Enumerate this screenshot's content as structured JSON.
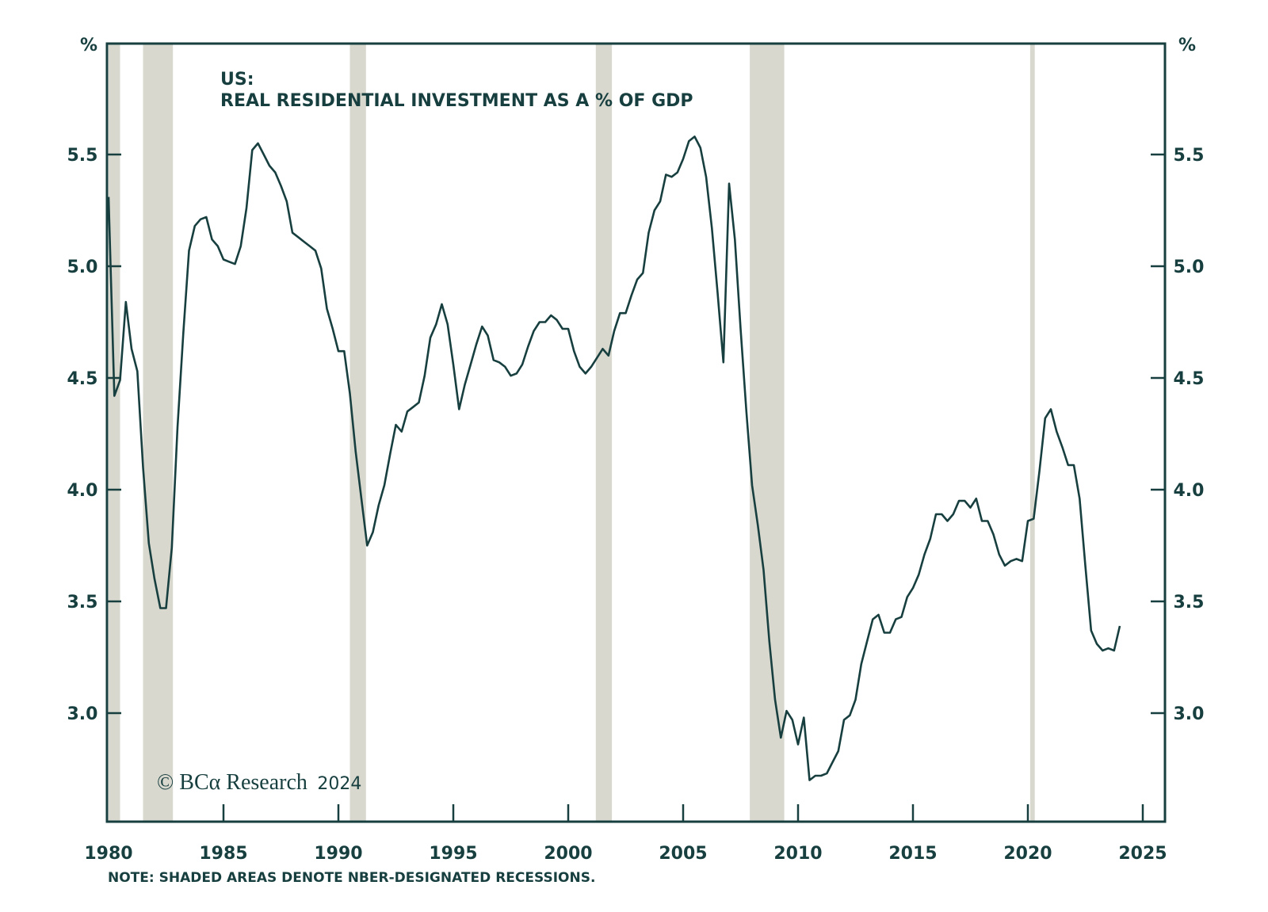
{
  "chart_data": {
    "type": "line",
    "title_line1": "US:",
    "title_line2": "REAL RESIDENTIAL INVESTMENT AS A % OF GDP",
    "left_unit": "%",
    "right_unit": "%",
    "note": "NOTE: SHADED AREAS DENOTE NBER-DESIGNATED RECESSIONS.",
    "copyright": "© BCα Research",
    "copyright_year": "2024",
    "xlim": [
      1980,
      2026
    ],
    "ylim": [
      2.5,
      6.0
    ],
    "x_ticks": [
      1980,
      1985,
      1990,
      1995,
      2000,
      2005,
      2010,
      2015,
      2020,
      2025
    ],
    "y_ticks": [
      3.0,
      3.5,
      4.0,
      4.5,
      5.0,
      5.5
    ],
    "y_tick_labels": [
      "3.0",
      "3.5",
      "4.0",
      "4.5",
      "5.0",
      "5.5"
    ],
    "grid": false,
    "colors": {
      "line": "#183f3f",
      "recession": "#d8d8cf",
      "axis": "#183f3f"
    },
    "recessions": [
      [
        1980.0,
        1980.5
      ],
      [
        1981.5,
        1982.8
      ],
      [
        1990.5,
        1991.2
      ],
      [
        2001.2,
        2001.9
      ],
      [
        2007.9,
        2009.4
      ],
      [
        2020.1,
        2020.3
      ]
    ],
    "series": [
      {
        "name": "Real residential investment as % of GDP",
        "x": [
          1980.0,
          1980.25,
          1980.5,
          1980.75,
          1981.0,
          1981.25,
          1981.5,
          1981.75,
          1982.0,
          1982.25,
          1982.5,
          1982.75,
          1983.0,
          1983.25,
          1983.5,
          1983.75,
          1984.0,
          1984.25,
          1984.5,
          1984.75,
          1985.0,
          1985.25,
          1985.5,
          1985.75,
          1986.0,
          1986.25,
          1986.5,
          1986.75,
          1987.0,
          1987.25,
          1987.5,
          1987.75,
          1988.0,
          1988.25,
          1988.5,
          1988.75,
          1989.0,
          1989.25,
          1989.5,
          1989.75,
          1990.0,
          1990.25,
          1990.5,
          1990.75,
          1991.0,
          1991.25,
          1991.5,
          1991.75,
          1992.0,
          1992.25,
          1992.5,
          1992.75,
          1993.0,
          1993.25,
          1993.5,
          1993.75,
          1994.0,
          1994.25,
          1994.5,
          1994.75,
          1995.0,
          1995.25,
          1995.5,
          1995.75,
          1996.0,
          1996.25,
          1996.5,
          1996.75,
          1997.0,
          1997.25,
          1997.5,
          1997.75,
          1998.0,
          1998.25,
          1998.5,
          1998.75,
          1999.0,
          1999.25,
          1999.5,
          1999.75,
          2000.0,
          2000.25,
          2000.5,
          2000.75,
          2001.0,
          2001.25,
          2001.5,
          2001.75,
          2002.0,
          2002.25,
          2002.5,
          2002.75,
          2003.0,
          2003.25,
          2003.5,
          2003.75,
          2004.0,
          2004.25,
          2004.5,
          2004.75,
          2005.0,
          2005.25,
          2005.5,
          2005.75,
          2006.0,
          2006.25,
          2006.5,
          2006.75,
          2007.0,
          2007.25,
          2007.5,
          2007.75,
          2008.0,
          2008.25,
          2008.5,
          2008.75,
          2009.0,
          2009.25,
          2009.5,
          2009.75,
          2010.0,
          2010.25,
          2010.5,
          2010.75,
          2011.0,
          2011.25,
          2011.5,
          2011.75,
          2012.0,
          2012.25,
          2012.5,
          2012.75,
          2013.0,
          2013.25,
          2013.5,
          2013.75,
          2014.0,
          2014.25,
          2014.5,
          2014.75,
          2015.0,
          2015.25,
          2015.5,
          2015.75,
          2016.0,
          2016.25,
          2016.5,
          2016.75,
          2017.0,
          2017.25,
          2017.5,
          2017.75,
          2018.0,
          2018.25,
          2018.5,
          2018.75,
          2019.0,
          2019.25,
          2019.5,
          2019.75,
          2020.0,
          2020.25,
          2020.5,
          2020.75,
          2021.0,
          2021.25,
          2021.5,
          2021.75,
          2022.0,
          2022.25,
          2022.5,
          2022.75,
          2023.0,
          2023.25,
          2023.5,
          2023.75,
          2024.0
        ],
        "values": [
          5.31,
          4.42,
          4.49,
          4.84,
          4.63,
          4.53,
          4.1,
          3.76,
          3.6,
          3.47,
          3.47,
          3.74,
          4.28,
          4.7,
          5.07,
          5.18,
          5.21,
          5.22,
          5.12,
          5.09,
          5.03,
          5.02,
          5.01,
          5.09,
          5.26,
          5.52,
          5.55,
          5.5,
          5.45,
          5.42,
          5.36,
          5.29,
          5.15,
          5.13,
          5.11,
          5.09,
          5.07,
          4.99,
          4.81,
          4.72,
          4.62,
          4.62,
          4.43,
          4.17,
          3.96,
          3.75,
          3.81,
          3.93,
          4.02,
          4.16,
          4.29,
          4.26,
          4.35,
          4.37,
          4.39,
          4.51,
          4.68,
          4.74,
          4.83,
          4.74,
          4.56,
          4.36,
          4.47,
          4.56,
          4.65,
          4.73,
          4.69,
          4.58,
          4.57,
          4.55,
          4.51,
          4.52,
          4.56,
          4.64,
          4.71,
          4.75,
          4.75,
          4.78,
          4.76,
          4.72,
          4.72,
          4.62,
          4.55,
          4.52,
          4.55,
          4.59,
          4.63,
          4.6,
          4.71,
          4.79,
          4.79,
          4.87,
          4.94,
          4.97,
          5.15,
          5.25,
          5.29,
          5.41,
          5.4,
          5.42,
          5.48,
          5.56,
          5.58,
          5.53,
          5.4,
          5.17,
          4.88,
          4.57,
          5.37,
          5.12,
          4.72,
          4.35,
          4.02,
          3.84,
          3.64,
          3.32,
          3.06,
          2.89,
          3.01,
          2.97,
          2.86,
          2.98,
          2.7,
          2.72,
          2.72,
          2.73,
          2.78,
          2.83,
          2.97,
          2.99,
          3.06,
          3.22,
          3.32,
          3.42,
          3.44,
          3.36,
          3.36,
          3.42,
          3.43,
          3.52,
          3.56,
          3.62,
          3.71,
          3.78,
          3.89,
          3.89,
          3.86,
          3.89,
          3.95,
          3.95,
          3.92,
          3.96,
          3.86,
          3.86,
          3.8,
          3.71,
          3.66,
          3.68,
          3.69,
          3.68,
          3.86,
          3.87,
          4.08,
          4.32,
          4.36,
          4.26,
          4.19,
          4.11,
          4.11,
          3.96,
          3.66,
          3.37,
          3.31,
          3.28,
          3.29,
          3.28,
          3.39
        ]
      }
    ]
  }
}
